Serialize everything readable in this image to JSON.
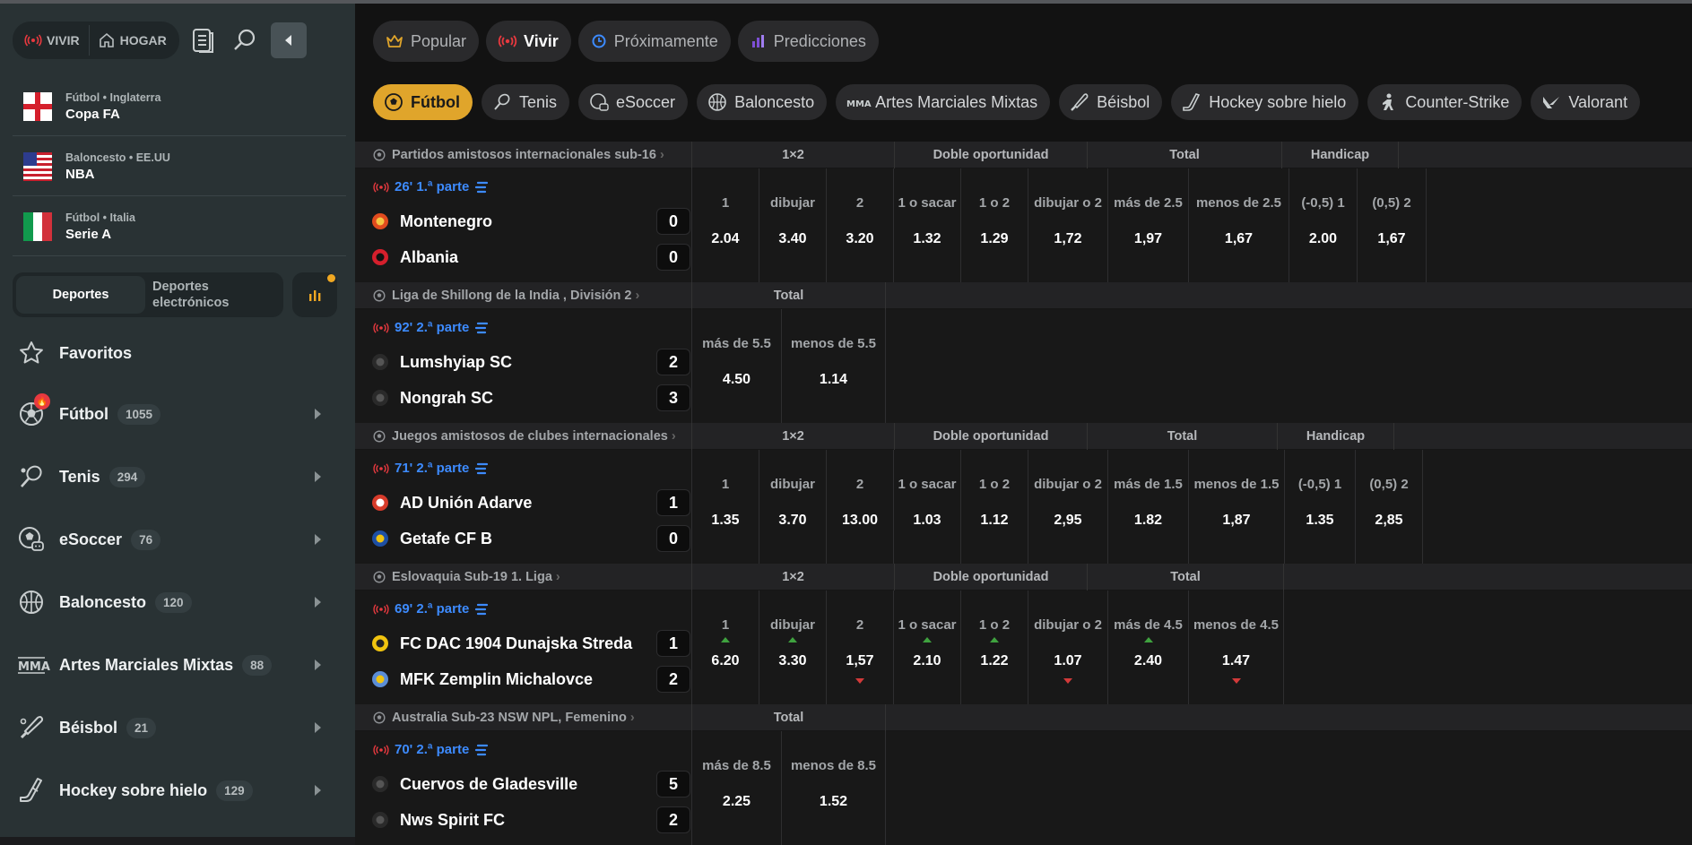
{
  "sidebar": {
    "seg_live": "VIVIR",
    "seg_home": "HOGAR",
    "favorites": [
      {
        "category": "Fútbol • Inglaterra",
        "name": "Copa FA",
        "flag": "england"
      },
      {
        "category": "Baloncesto • EE.UU",
        "name": "NBA",
        "flag": "usa"
      },
      {
        "category": "Fútbol • Italia",
        "name": "Serie A",
        "flag": "italy"
      }
    ],
    "mode_sports": "Deportes",
    "mode_esports": "Deportes electrónicos",
    "fav_label": "Favoritos",
    "sports": [
      {
        "name": "Fútbol",
        "count": "1055",
        "icon": "soccer-ball-icon"
      },
      {
        "name": "Tenis",
        "count": "294",
        "icon": "tennis-racket-icon"
      },
      {
        "name": "eSoccer",
        "count": "76",
        "icon": "esoccer-icon"
      },
      {
        "name": "Baloncesto",
        "count": "120",
        "icon": "basketball-icon"
      },
      {
        "name": "Artes Marciales Mixtas",
        "count": "88",
        "icon": "mma-icon"
      },
      {
        "name": "Béisbol",
        "count": "21",
        "icon": "baseball-bat-icon"
      },
      {
        "name": "Hockey sobre hielo",
        "count": "129",
        "icon": "hockey-stick-icon"
      }
    ]
  },
  "main": {
    "tabs": [
      {
        "label": "Popular"
      },
      {
        "label": "Vivir"
      },
      {
        "label": "Próximamente"
      },
      {
        "label": "Predicciones"
      }
    ],
    "sports": [
      {
        "label": "Fútbol"
      },
      {
        "label": "Tenis"
      },
      {
        "label": "eSoccer"
      },
      {
        "label": "Baloncesto"
      },
      {
        "label": "Artes Marciales Mixtas"
      },
      {
        "label": "Béisbol"
      },
      {
        "label": "Hockey sobre hielo"
      },
      {
        "label": "Counter-Strike"
      },
      {
        "label": "Valorant"
      }
    ]
  },
  "matches": [
    {
      "league": "Partidos amistosos internacionales sub-16",
      "time": "26' 1.ª parte",
      "headers": [
        {
          "label": "1×2"
        },
        {
          "label": "Doble oportunidad"
        },
        {
          "label": "Total"
        },
        {
          "label": "Handicap"
        }
      ],
      "team1": "Montenegro",
      "score1": "0",
      "team2": "Albania",
      "score2": "0",
      "odds": [
        {
          "label": "1",
          "value": "2.04"
        },
        {
          "label": "dibujar",
          "value": "3.40"
        },
        {
          "label": "2",
          "value": "3.20"
        },
        {
          "label": "1 o sacar",
          "value": "1.32"
        },
        {
          "label": "1 o 2",
          "value": "1.29"
        },
        {
          "label": "dibujar o 2",
          "value": "1,72"
        },
        {
          "label": "más de 2.5",
          "value": "1,97"
        },
        {
          "label": "menos de 2.5",
          "value": "1,67"
        },
        {
          "label": "(-0,5)  1",
          "value": "2.00"
        },
        {
          "label": "(0,5)  2",
          "value": "1,67"
        }
      ]
    },
    {
      "league": "Liga de Shillong de la India , División 2",
      "time": "92' 2.ª parte",
      "headers": [
        {
          "label": "Total"
        }
      ],
      "team1": "Lumshyiap SC",
      "score1": "2",
      "team2": "Nongrah SC",
      "score2": "3",
      "odds": [
        {
          "label": "más de 5.5",
          "value": "4.50"
        },
        {
          "label": "menos de 5.5",
          "value": "1.14"
        }
      ]
    },
    {
      "league": "Juegos amistosos de clubes internacionales",
      "time": "71' 2.ª parte",
      "headers": [
        {
          "label": "1×2"
        },
        {
          "label": "Doble oportunidad"
        },
        {
          "label": "Total"
        },
        {
          "label": "Handicap"
        }
      ],
      "team1": "AD Unión Adarve",
      "score1": "1",
      "team2": "Getafe CF B",
      "score2": "0",
      "odds": [
        {
          "label": "1",
          "value": "1.35"
        },
        {
          "label": "dibujar",
          "value": "3.70"
        },
        {
          "label": "2",
          "value": "13.00"
        },
        {
          "label": "1 o sacar",
          "value": "1.03"
        },
        {
          "label": "1 o 2",
          "value": "1.12"
        },
        {
          "label": "dibujar o 2",
          "value": "2,95"
        },
        {
          "label": "más de 1.5",
          "value": "1.82"
        },
        {
          "label": "menos de 1.5",
          "value": "1,87"
        },
        {
          "label": "(-0,5)  1",
          "value": "1.35"
        },
        {
          "label": "(0,5)  2",
          "value": "2,85"
        }
      ]
    },
    {
      "league": "Eslovaquia Sub-19 1. Liga",
      "time": "69' 2.ª parte",
      "headers": [
        {
          "label": "1×2"
        },
        {
          "label": "Doble oportunidad"
        },
        {
          "label": "Total"
        }
      ],
      "team1": "FC DAC 1904 Dunajska Streda",
      "score1": "1",
      "team2": "MFK Zemplin Michalovce",
      "score2": "2",
      "odds": [
        {
          "label": "1",
          "value": "6.20"
        },
        {
          "label": "dibujar",
          "value": "3.30"
        },
        {
          "label": "2",
          "value": "1,57"
        },
        {
          "label": "1 o sacar",
          "value": "2.10"
        },
        {
          "label": "1 o 2",
          "value": "1.22"
        },
        {
          "label": "dibujar o 2",
          "value": "1.07"
        },
        {
          "label": "más de 4.5",
          "value": "2.40"
        },
        {
          "label": "menos de 4.5",
          "value": "1.47"
        }
      ]
    },
    {
      "league": "Australia Sub-23 NSW NPL, Femenino",
      "time": "70' 2.ª parte",
      "headers": [
        {
          "label": "Total"
        }
      ],
      "team1": "Cuervos de Gladesville",
      "score1": "5",
      "team2": "Nws Spirit FC",
      "score2": "2",
      "odds": [
        {
          "label": "más de 8.5",
          "value": "2.25"
        },
        {
          "label": "menos de 8.5",
          "value": "1.52"
        }
      ]
    }
  ],
  "colors": {
    "accent": "#e0a52b",
    "live": "#e8393f",
    "time": "#3d8bff",
    "up": "#3fa23f",
    "down": "#d23a3a"
  }
}
